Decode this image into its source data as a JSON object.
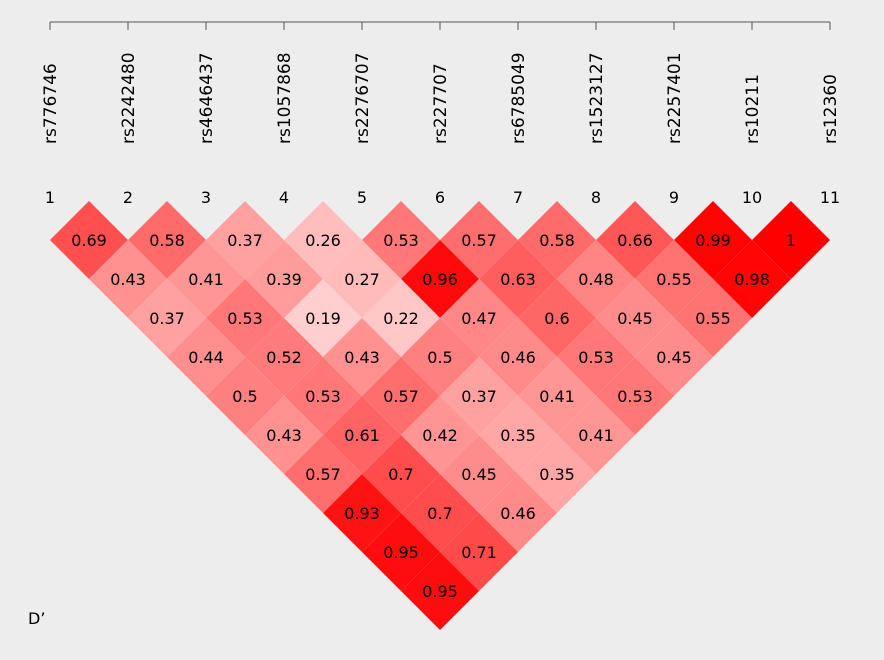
{
  "chart_data": {
    "type": "heatmap",
    "metric_label": "D’",
    "markers": [
      "rs776746",
      "rs2242480",
      "rs4646437",
      "rs1057868",
      "rs2276707",
      "rs227707",
      "rs6785049",
      "rs1523127",
      "rs2257401",
      "rs10211",
      "rs12360"
    ],
    "indices": [
      "1",
      "2",
      "3",
      "4",
      "5",
      "6",
      "7",
      "8",
      "9",
      "10",
      "11"
    ],
    "values": [
      [
        0.69,
        0.58,
        0.37,
        0.26,
        0.53,
        0.57,
        0.58,
        0.66,
        0.99,
        1
      ],
      [
        0.43,
        0.41,
        0.39,
        0.27,
        0.96,
        0.63,
        0.48,
        0.55,
        0.98
      ],
      [
        0.37,
        0.53,
        0.19,
        0.22,
        0.47,
        0.6,
        0.45,
        0.55
      ],
      [
        0.44,
        0.52,
        0.43,
        0.5,
        0.46,
        0.53,
        0.45
      ],
      [
        0.5,
        0.53,
        0.57,
        0.37,
        0.41,
        0.53
      ],
      [
        0.43,
        0.61,
        0.42,
        0.35,
        0.41
      ],
      [
        0.57,
        0.7,
        0.45,
        0.35
      ],
      [
        0.93,
        0.7,
        0.46
      ],
      [
        0.95,
        0.71
      ],
      [
        0.95
      ]
    ],
    "color_scale": {
      "low": "#ffffff",
      "high": "#ff0000"
    }
  }
}
